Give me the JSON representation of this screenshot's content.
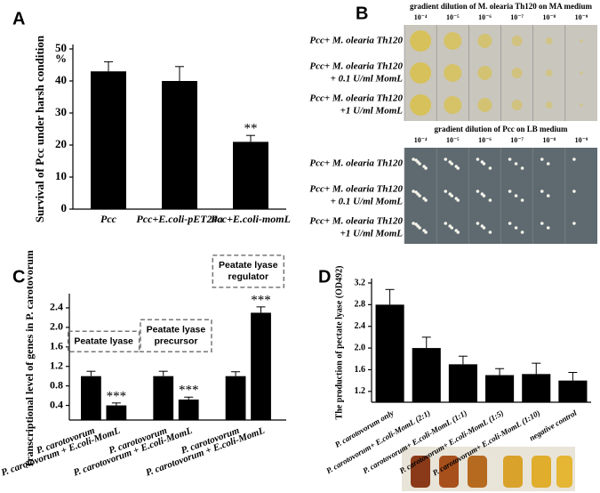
{
  "chart_data": [
    {
      "type": "bar",
      "panel_label": "A",
      "ylabel": "Survival of Pcc under harsh condition",
      "y_unit": "%",
      "categories": [
        "Pcc",
        "Pcc+E.coli-pET24a",
        "Pcc+E.coli-momL"
      ],
      "values": [
        43,
        40,
        21
      ],
      "errors": [
        3,
        4.5,
        2
      ],
      "annotations": [
        null,
        null,
        "**"
      ],
      "color": "#000000",
      "ylim": [
        0,
        50
      ],
      "yticks": [
        0,
        10,
        20,
        30,
        40,
        50
      ]
    },
    {
      "type": "bar",
      "panel_label": "C",
      "ylabel": "Transcriptional level of genes in P. carotovorum",
      "categories": [
        "P. carotovorum",
        "P. carotovorum + E.coli-MomL",
        "P. carotovorum",
        "P. carotovorum + E.coli-MomL",
        "P. carotovorum",
        "P. carotovorum + E.coli-MomL"
      ],
      "values": [
        1.0,
        0.4,
        1.0,
        0.52,
        1.0,
        2.3
      ],
      "errors": [
        0.1,
        0.05,
        0.1,
        0.05,
        0.09,
        0.12
      ],
      "annotations": [
        null,
        "***",
        null,
        "***",
        null,
        "***"
      ],
      "group_labels": [
        [
          "Peatate lyase"
        ],
        [
          "Peatate lyase",
          "precursor"
        ],
        [
          "Peatate lyase",
          "regulator"
        ]
      ],
      "color": "#000000",
      "ylim": [
        0.1,
        2.6
      ],
      "yticks": [
        0.4,
        0.8,
        1.2,
        1.6,
        {
          "value": 2,
          "label": "2.0"
        },
        2.4
      ]
    },
    {
      "type": "bar",
      "panel_label": "D",
      "ylabel": "The production of pectate lyase (OD492)",
      "categories": [
        "P. carotovorum only",
        "P. carotovorum+ E.coli-MomL (2:1)",
        "P. carotovorum+ E.coli-MomL (1:1)",
        "P. carotovorum+ E.coli-MomL (1:5)",
        "P. carotovorum+ E.coli-MomL (1:10)",
        "negative control"
      ],
      "values": [
        2.8,
        2.0,
        1.7,
        1.5,
        1.52,
        1.4
      ],
      "errors": [
        0.28,
        0.2,
        0.15,
        0.12,
        0.2,
        0.15
      ],
      "color": "#000000",
      "ylim": [
        1.0,
        3.2
      ],
      "yticks": [
        1.2,
        1.6,
        {
          "value": 2,
          "label": "2.0"
        },
        2.4,
        2.8,
        3.2
      ]
    }
  ],
  "photo_panel": {
    "panel_label": "B",
    "plates": [
      {
        "title": "gradient dilution of M. olearia Th120 on MA medium",
        "dilutions": [
          "10⁻⁴",
          "10⁻⁵",
          "10⁻⁶",
          "10⁻⁷",
          "10⁻⁸",
          "10⁻⁹"
        ],
        "rows": [
          [
            "Pcc+ M. olearia Th120"
          ],
          [
            "Pcc+ M. olearia Th120",
            "+ 0.1 U/ml MomL"
          ],
          [
            "Pcc+ M. olearia Th120",
            "+1 U/ml MomL"
          ]
        ]
      },
      {
        "title": "gradient dilution of Pcc on LB medium",
        "dilutions": [
          "10⁻⁴",
          "10⁻⁵",
          "10⁻⁶",
          "10⁻⁷",
          "10⁻⁸",
          "10⁻⁹"
        ],
        "rows": [
          [
            "Pcc+ M. olearia Th120"
          ],
          [
            "Pcc+ M. olearia Th120",
            "+ 0.1 U/ml MomL"
          ],
          [
            "Pcc+ M. olearia Th120",
            "+1 U/ml MomL"
          ]
        ]
      }
    ]
  }
}
